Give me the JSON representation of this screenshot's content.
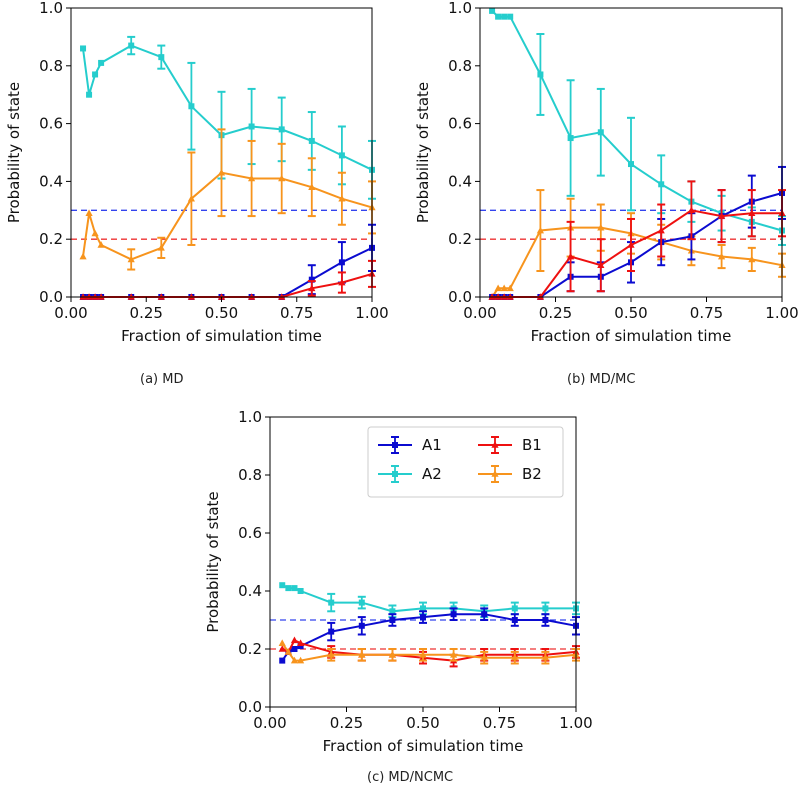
{
  "colors": {
    "A1": "#0b0bd0",
    "A2": "#25cdcd",
    "B1": "#ee1010",
    "B2": "#f7941d",
    "ref_A": "#3344ee",
    "ref_B": "#ee3333"
  },
  "chart_data": [
    {
      "id": "a",
      "caption": "(a) MD",
      "type": "line",
      "xlabel": "Fraction of simulation time",
      "ylabel": "Probability of state",
      "xlim": [
        0,
        1
      ],
      "ylim": [
        0,
        1
      ],
      "xticks": [
        "0.00",
        "0.25",
        "0.50",
        "0.75",
        "1.00"
      ],
      "yticks": [
        "0.0",
        "0.2",
        "0.4",
        "0.6",
        "0.8",
        "1.0"
      ],
      "reference_lines": [
        {
          "y": 0.3,
          "color_key": "ref_A"
        },
        {
          "y": 0.2,
          "color_key": "ref_B"
        }
      ],
      "series": [
        {
          "name": "A2",
          "marker": "square",
          "x": [
            0.04,
            0.06,
            0.08,
            0.1,
            0.2,
            0.3,
            0.4,
            0.5,
            0.6,
            0.7,
            0.8,
            0.9,
            1.0
          ],
          "y": [
            0.86,
            0.7,
            0.77,
            0.81,
            0.87,
            0.83,
            0.66,
            0.56,
            0.59,
            0.58,
            0.54,
            0.49,
            0.44
          ],
          "err": [
            0,
            0,
            0,
            0,
            0.03,
            0.04,
            0.15,
            0.15,
            0.13,
            0.11,
            0.1,
            0.1,
            0.1
          ]
        },
        {
          "name": "B2",
          "marker": "triangle",
          "x": [
            0.04,
            0.06,
            0.08,
            0.1,
            0.2,
            0.3,
            0.4,
            0.5,
            0.6,
            0.7,
            0.8,
            0.9,
            1.0
          ],
          "y": [
            0.14,
            0.29,
            0.22,
            0.18,
            0.13,
            0.17,
            0.34,
            0.43,
            0.41,
            0.41,
            0.38,
            0.34,
            0.31
          ],
          "err": [
            0,
            0,
            0,
            0,
            0.035,
            0.035,
            0.16,
            0.15,
            0.13,
            0.12,
            0.1,
            0.09,
            0.09
          ]
        },
        {
          "name": "A1",
          "marker": "square",
          "x": [
            0.04,
            0.06,
            0.08,
            0.1,
            0.2,
            0.3,
            0.4,
            0.5,
            0.6,
            0.7,
            0.8,
            0.9,
            1.0
          ],
          "y": [
            0,
            0,
            0,
            0,
            0,
            0,
            0,
            0,
            0,
            0,
            0.06,
            0.12,
            0.17
          ],
          "err": [
            0,
            0,
            0,
            0,
            0,
            0,
            0,
            0,
            0,
            0,
            0.05,
            0.07,
            0.08
          ]
        },
        {
          "name": "B1",
          "marker": "triangle",
          "x": [
            0.04,
            0.06,
            0.08,
            0.1,
            0.2,
            0.3,
            0.4,
            0.5,
            0.6,
            0.7,
            0.8,
            0.9,
            1.0
          ],
          "y": [
            0,
            0,
            0,
            0,
            0,
            0,
            0,
            0,
            0,
            0,
            0.03,
            0.05,
            0.08
          ],
          "err": [
            0,
            0,
            0,
            0,
            0,
            0,
            0,
            0,
            0,
            0,
            0.025,
            0.035,
            0.045
          ]
        }
      ]
    },
    {
      "id": "b",
      "caption": "(b) MD/MC",
      "type": "line",
      "xlabel": "Fraction of simulation time",
      "ylabel": "Probability of state",
      "xlim": [
        0,
        1
      ],
      "ylim": [
        0,
        1
      ],
      "xticks": [
        "0.00",
        "0.25",
        "0.50",
        "0.75",
        "1.00"
      ],
      "yticks": [
        "0.0",
        "0.2",
        "0.4",
        "0.6",
        "0.8",
        "1.0"
      ],
      "reference_lines": [
        {
          "y": 0.3,
          "color_key": "ref_A"
        },
        {
          "y": 0.2,
          "color_key": "ref_B"
        }
      ],
      "series": [
        {
          "name": "A2",
          "marker": "square",
          "x": [
            0.04,
            0.06,
            0.08,
            0.1,
            0.2,
            0.3,
            0.4,
            0.5,
            0.6,
            0.7,
            0.8,
            0.9,
            1.0
          ],
          "y": [
            0.99,
            0.97,
            0.97,
            0.97,
            0.77,
            0.55,
            0.57,
            0.46,
            0.39,
            0.33,
            0.29,
            0.26,
            0.23
          ],
          "err": [
            0,
            0,
            0,
            0,
            0.14,
            0.2,
            0.15,
            0.16,
            0.1,
            0.07,
            0.06,
            0.05,
            0.05
          ]
        },
        {
          "name": "B2",
          "marker": "triangle",
          "x": [
            0.04,
            0.06,
            0.08,
            0.1,
            0.2,
            0.3,
            0.4,
            0.5,
            0.6,
            0.7,
            0.8,
            0.9,
            1.0
          ],
          "y": [
            0.0,
            0.03,
            0.03,
            0.03,
            0.23,
            0.24,
            0.24,
            0.22,
            0.19,
            0.16,
            0.14,
            0.13,
            0.11
          ],
          "err": [
            0,
            0,
            0,
            0,
            0.14,
            0.1,
            0.08,
            0.07,
            0.06,
            0.05,
            0.04,
            0.04,
            0.04
          ]
        },
        {
          "name": "A1",
          "marker": "square",
          "x": [
            0.04,
            0.06,
            0.08,
            0.1,
            0.2,
            0.3,
            0.4,
            0.5,
            0.6,
            0.7,
            0.8,
            0.9,
            1.0
          ],
          "y": [
            0,
            0,
            0,
            0,
            0,
            0.07,
            0.07,
            0.12,
            0.19,
            0.21,
            0.28,
            0.33,
            0.36
          ],
          "err": [
            0,
            0,
            0,
            0,
            0,
            0.05,
            0.05,
            0.07,
            0.08,
            0.08,
            0.09,
            0.09,
            0.09
          ]
        },
        {
          "name": "B1",
          "marker": "triangle",
          "x": [
            0.04,
            0.06,
            0.08,
            0.1,
            0.2,
            0.3,
            0.4,
            0.5,
            0.6,
            0.7,
            0.8,
            0.9,
            1.0
          ],
          "y": [
            0,
            0,
            0,
            0,
            0,
            0.14,
            0.11,
            0.18,
            0.23,
            0.3,
            0.28,
            0.29,
            0.29
          ],
          "err": [
            0,
            0,
            0,
            0,
            0,
            0.12,
            0.09,
            0.09,
            0.09,
            0.1,
            0.09,
            0.08,
            0.08
          ]
        }
      ]
    },
    {
      "id": "c",
      "caption": "(c) MD/NCMC",
      "type": "line",
      "xlabel": "Fraction of simulation time",
      "ylabel": "Probability of state",
      "xlim": [
        0,
        1
      ],
      "ylim": [
        0,
        1
      ],
      "xticks": [
        "0.00",
        "0.25",
        "0.50",
        "0.75",
        "1.00"
      ],
      "yticks": [
        "0.0",
        "0.2",
        "0.4",
        "0.6",
        "0.8",
        "1.0"
      ],
      "reference_lines": [
        {
          "y": 0.3,
          "color_key": "ref_A"
        },
        {
          "y": 0.2,
          "color_key": "ref_B"
        }
      ],
      "legend": {
        "placement": "top-right",
        "entries": [
          "A1",
          "B1",
          "A2",
          "B2"
        ]
      },
      "series": [
        {
          "name": "A2",
          "marker": "square",
          "x": [
            0.04,
            0.06,
            0.08,
            0.1,
            0.2,
            0.3,
            0.4,
            0.5,
            0.6,
            0.7,
            0.8,
            0.9,
            1.0
          ],
          "y": [
            0.42,
            0.41,
            0.41,
            0.4,
            0.36,
            0.36,
            0.33,
            0.34,
            0.34,
            0.33,
            0.34,
            0.34,
            0.34
          ],
          "err": [
            0,
            0,
            0,
            0,
            0.03,
            0.02,
            0.02,
            0.02,
            0.02,
            0.02,
            0.02,
            0.02,
            0.02
          ]
        },
        {
          "name": "A1",
          "marker": "square",
          "x": [
            0.04,
            0.06,
            0.08,
            0.1,
            0.2,
            0.3,
            0.4,
            0.5,
            0.6,
            0.7,
            0.8,
            0.9,
            1.0
          ],
          "y": [
            0.16,
            0.19,
            0.2,
            0.21,
            0.26,
            0.28,
            0.3,
            0.31,
            0.32,
            0.32,
            0.3,
            0.3,
            0.28
          ],
          "err": [
            0,
            0,
            0,
            0,
            0.03,
            0.03,
            0.02,
            0.02,
            0.02,
            0.02,
            0.02,
            0.02,
            0.03
          ]
        },
        {
          "name": "B1",
          "marker": "triangle",
          "x": [
            0.04,
            0.06,
            0.08,
            0.1,
            0.2,
            0.3,
            0.4,
            0.5,
            0.6,
            0.7,
            0.8,
            0.9,
            1.0
          ],
          "y": [
            0.2,
            0.19,
            0.23,
            0.22,
            0.19,
            0.18,
            0.18,
            0.17,
            0.16,
            0.18,
            0.18,
            0.18,
            0.19
          ],
          "err": [
            0,
            0,
            0,
            0,
            0.02,
            0.02,
            0.02,
            0.02,
            0.02,
            0.02,
            0.02,
            0.02,
            0.02
          ]
        },
        {
          "name": "B2",
          "marker": "triangle",
          "x": [
            0.04,
            0.06,
            0.08,
            0.1,
            0.2,
            0.3,
            0.4,
            0.5,
            0.6,
            0.7,
            0.8,
            0.9,
            1.0
          ],
          "y": [
            0.22,
            0.19,
            0.16,
            0.16,
            0.18,
            0.18,
            0.18,
            0.18,
            0.18,
            0.17,
            0.17,
            0.17,
            0.18
          ],
          "err": [
            0,
            0,
            0,
            0,
            0.02,
            0.02,
            0.02,
            0.02,
            0.02,
            0.02,
            0.02,
            0.02,
            0.02
          ]
        }
      ]
    }
  ]
}
